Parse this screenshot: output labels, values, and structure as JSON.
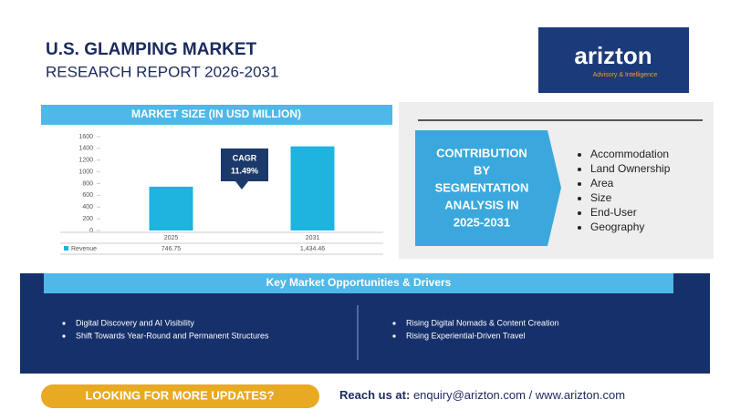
{
  "header": {
    "title": "U.S. GLAMPING MARKET",
    "subtitle": "RESEARCH REPORT 2026-2031"
  },
  "logo": {
    "name": "arizton",
    "tagline": "Advisory & Intelligence"
  },
  "chart_data": {
    "type": "bar",
    "title": "MARKET SIZE (IN USD MILLION)",
    "categories": [
      "2025",
      "2031"
    ],
    "series": [
      {
        "name": "Revenue",
        "color": "#1fb3e0",
        "values": [
          746.75,
          1434.46
        ],
        "value_labels": [
          "746.75",
          "1,434.46"
        ]
      }
    ],
    "ylim": [
      0,
      1600
    ],
    "yticks": [
      0,
      200,
      400,
      600,
      800,
      1000,
      1200,
      1400,
      1600
    ],
    "annotation": {
      "label": "CAGR",
      "value": "11.49%"
    }
  },
  "segmentation": {
    "title_lines": [
      "CONTRIBUTION",
      "BY",
      "SEGMENTATION",
      "ANALYSIS IN",
      "2025-2031"
    ],
    "items": [
      "Accommodation",
      "Land Ownership",
      "Area",
      "Size",
      "End-User",
      "Geography"
    ]
  },
  "drivers": {
    "title": "Key Market Opportunities & Drivers",
    "left": [
      "Digital Discovery and AI Visibility",
      "Shift Towards Year-Round and Permanent Structures"
    ],
    "right": [
      "Rising Digital Nomads & Content Creation",
      "Rising Experiential-Driven Travel"
    ]
  },
  "footer": {
    "cta": "LOOKING FOR MORE UPDATES?",
    "reach_label": "Reach us at:",
    "contact": "enquiry@arizton.com / www.arizton.com"
  }
}
